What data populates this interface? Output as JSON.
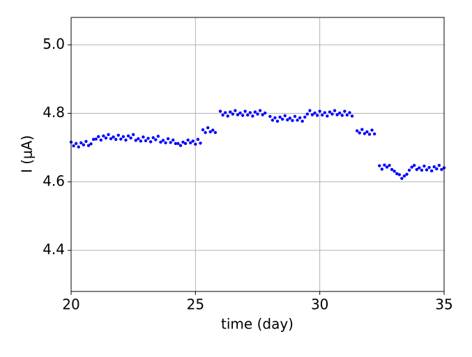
{
  "chart_data": {
    "type": "scatter",
    "xlabel": "time (day)",
    "ylabel": "I (μA)",
    "color": "#0000ff",
    "grid": true,
    "xlim": [
      20,
      35
    ],
    "xticks": [
      20,
      25,
      30,
      35
    ],
    "ylim": [
      4.28,
      5.08
    ],
    "yticks": [
      4.4,
      4.6,
      4.8,
      {
        "value": 5,
        "label": "5.0"
      }
    ],
    "x": [
      20.0,
      20.1,
      20.2,
      20.3,
      20.4,
      20.5,
      20.6,
      20.7,
      20.8,
      20.9,
      21.0,
      21.1,
      21.2,
      21.3,
      21.4,
      21.5,
      21.6,
      21.7,
      21.8,
      21.9,
      22.0,
      22.1,
      22.2,
      22.3,
      22.4,
      22.5,
      22.6,
      22.7,
      22.8,
      22.9,
      23.0,
      23.1,
      23.2,
      23.3,
      23.4,
      23.5,
      23.6,
      23.7,
      23.8,
      23.9,
      24.0,
      24.1,
      24.2,
      24.3,
      24.4,
      24.5,
      24.6,
      24.7,
      24.8,
      24.9,
      25.0,
      25.1,
      25.2,
      25.3,
      25.4,
      25.5,
      25.6,
      25.7,
      25.8,
      26.0,
      26.1,
      26.2,
      26.3,
      26.4,
      26.5,
      26.6,
      26.7,
      26.8,
      26.9,
      27.0,
      27.1,
      27.2,
      27.3,
      27.4,
      27.5,
      27.6,
      27.7,
      27.8,
      28.0,
      28.1,
      28.2,
      28.3,
      28.4,
      28.5,
      28.6,
      28.7,
      28.8,
      28.9,
      29.0,
      29.1,
      29.2,
      29.3,
      29.4,
      29.5,
      29.6,
      29.7,
      29.8,
      29.9,
      30.0,
      30.1,
      30.2,
      30.3,
      30.4,
      30.5,
      30.6,
      30.7,
      30.8,
      30.9,
      31.0,
      31.1,
      31.2,
      31.3,
      31.5,
      31.6,
      31.7,
      31.8,
      31.9,
      32.0,
      32.1,
      32.2,
      32.4,
      32.5,
      32.6,
      32.7,
      32.8,
      32.9,
      33.0,
      33.1,
      33.2,
      33.3,
      33.4,
      33.5,
      33.6,
      33.7,
      33.8,
      33.9,
      34.0,
      34.1,
      34.2,
      34.3,
      34.4,
      34.5,
      34.6,
      34.7,
      34.8,
      34.9,
      35.0
    ],
    "values": [
      4.716,
      4.705,
      4.712,
      4.702,
      4.714,
      4.708,
      4.718,
      4.706,
      4.711,
      4.724,
      4.725,
      4.732,
      4.722,
      4.734,
      4.728,
      4.738,
      4.726,
      4.731,
      4.724,
      4.736,
      4.725,
      4.732,
      4.722,
      4.734,
      4.728,
      4.738,
      4.721,
      4.726,
      4.719,
      4.731,
      4.72,
      4.727,
      4.717,
      4.729,
      4.723,
      4.733,
      4.716,
      4.721,
      4.714,
      4.726,
      4.715,
      4.722,
      4.712,
      4.712,
      4.706,
      4.716,
      4.712,
      4.722,
      4.714,
      4.719,
      4.71,
      4.724,
      4.713,
      4.752,
      4.744,
      4.758,
      4.746,
      4.751,
      4.744,
      4.806,
      4.795,
      4.802,
      4.792,
      4.804,
      4.798,
      4.808,
      4.796,
      4.801,
      4.794,
      4.806,
      4.795,
      4.802,
      4.792,
      4.804,
      4.798,
      4.808,
      4.796,
      4.801,
      4.791,
      4.78,
      4.787,
      4.777,
      4.789,
      4.783,
      4.793,
      4.781,
      4.786,
      4.779,
      4.791,
      4.78,
      4.787,
      4.777,
      4.789,
      4.798,
      4.808,
      4.796,
      4.801,
      4.794,
      4.806,
      4.795,
      4.802,
      4.792,
      4.804,
      4.798,
      4.808,
      4.796,
      4.801,
      4.794,
      4.806,
      4.795,
      4.802,
      4.792,
      4.749,
      4.743,
      4.753,
      4.741,
      4.746,
      4.739,
      4.751,
      4.74,
      4.647,
      4.637,
      4.649,
      4.643,
      4.648,
      4.636,
      4.631,
      4.624,
      4.621,
      4.61,
      4.617,
      4.622,
      4.634,
      4.643,
      4.648,
      4.636,
      4.641,
      4.634,
      4.646,
      4.635,
      4.642,
      4.632,
      4.644,
      4.638,
      4.648,
      4.636,
      4.641
    ]
  }
}
